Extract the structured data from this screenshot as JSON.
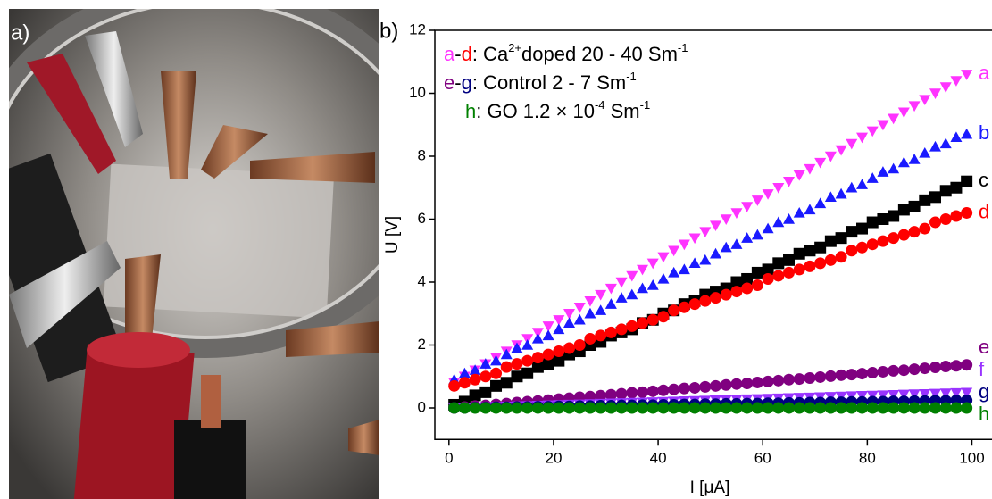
{
  "panel_a": {
    "label": "a)"
  },
  "chart_data": {
    "type": "scatter",
    "panel_label": "b)",
    "x_label": "I [μA]",
    "y_label": "U [V]",
    "xlim": [
      -2.7,
      103.5
    ],
    "ylim": [
      -1,
      12
    ],
    "xticks": [
      0,
      20,
      40,
      60,
      80,
      100
    ],
    "yticks": [
      0,
      2,
      4,
      6,
      8,
      10,
      12
    ],
    "grid": false,
    "legend": [
      [
        {
          "text": "a",
          "color": "#ff33ff"
        },
        {
          "text": "-"
        },
        {
          "text": "d",
          "color": "#ff0000"
        },
        {
          "text": ": Ca"
        },
        {
          "text": "2+",
          "sup": true
        },
        {
          "text": "doped 20 - 40 Sm"
        },
        {
          "text": "-1",
          "sup": true
        }
      ],
      [
        {
          "text": "e",
          "color": "#800080"
        },
        {
          "text": "-"
        },
        {
          "text": "g",
          "color": "#000080"
        },
        {
          "text": ": Control  2 - 7 Sm"
        },
        {
          "text": "-1",
          "sup": true
        }
      ],
      [
        {
          "text": "h",
          "color": "#008000"
        },
        {
          "text": ": GO  1.2 × 10"
        },
        {
          "text": "-4",
          "sup": true
        },
        {
          "text": " Sm"
        },
        {
          "text": "-1",
          "sup": true
        }
      ]
    ],
    "x": [
      1,
      3,
      5,
      7,
      9,
      11,
      13,
      15,
      17,
      19,
      21,
      23,
      25,
      27,
      29,
      31,
      33,
      35,
      37,
      39,
      41,
      43,
      45,
      47,
      49,
      51,
      53,
      55,
      57,
      59,
      61,
      63,
      65,
      67,
      69,
      71,
      73,
      75,
      77,
      79,
      81,
      83,
      85,
      87,
      89,
      91,
      93,
      95,
      97,
      99
    ],
    "series": [
      {
        "name": "a",
        "color": "#ff33ff",
        "marker": "triangle-down",
        "values": [
          0.8,
          1.0,
          1.2,
          1.4,
          1.6,
          1.8,
          2.0,
          2.2,
          2.4,
          2.6,
          2.8,
          3.0,
          3.2,
          3.4,
          3.6,
          3.8,
          4.0,
          4.2,
          4.4,
          4.6,
          4.8,
          5.0,
          5.2,
          5.4,
          5.6,
          5.8,
          6.0,
          6.2,
          6.4,
          6.6,
          6.8,
          7.0,
          7.2,
          7.4,
          7.6,
          7.8,
          8.0,
          8.2,
          8.4,
          8.6,
          8.8,
          9.0,
          9.2,
          9.4,
          9.6,
          9.8,
          10.0,
          10.2,
          10.4,
          10.6
        ]
      },
      {
        "name": "b",
        "color": "#1a1aff",
        "marker": "triangle-up",
        "values": [
          0.9,
          1.1,
          1.2,
          1.4,
          1.5,
          1.7,
          1.9,
          2.0,
          2.2,
          2.3,
          2.5,
          2.7,
          2.8,
          3.0,
          3.1,
          3.3,
          3.5,
          3.6,
          3.8,
          3.9,
          4.1,
          4.3,
          4.4,
          4.6,
          4.7,
          4.9,
          5.1,
          5.2,
          5.4,
          5.5,
          5.7,
          5.9,
          6.0,
          6.2,
          6.3,
          6.5,
          6.7,
          6.8,
          7.0,
          7.1,
          7.3,
          7.5,
          7.6,
          7.8,
          7.9,
          8.1,
          8.3,
          8.4,
          8.6,
          8.7
        ]
      },
      {
        "name": "c",
        "color": "#000000",
        "marker": "square",
        "values": [
          0.1,
          0.2,
          0.4,
          0.5,
          0.7,
          0.8,
          1.0,
          1.1,
          1.3,
          1.4,
          1.5,
          1.7,
          1.8,
          2.0,
          2.1,
          2.3,
          2.4,
          2.5,
          2.7,
          2.8,
          3.0,
          3.1,
          3.3,
          3.4,
          3.6,
          3.7,
          3.8,
          4.0,
          4.1,
          4.3,
          4.4,
          4.6,
          4.7,
          4.9,
          5.0,
          5.1,
          5.3,
          5.4,
          5.6,
          5.7,
          5.9,
          6.0,
          6.1,
          6.3,
          6.4,
          6.6,
          6.7,
          6.9,
          7.0,
          7.2
        ]
      },
      {
        "name": "d",
        "color": "#ff0000",
        "marker": "circle",
        "values": [
          0.7,
          0.8,
          0.9,
          1.0,
          1.1,
          1.3,
          1.4,
          1.5,
          1.6,
          1.7,
          1.8,
          1.9,
          2.0,
          2.2,
          2.3,
          2.4,
          2.5,
          2.6,
          2.7,
          2.8,
          2.9,
          3.1,
          3.2,
          3.3,
          3.4,
          3.5,
          3.6,
          3.7,
          3.8,
          3.9,
          4.1,
          4.2,
          4.3,
          4.4,
          4.5,
          4.6,
          4.7,
          4.8,
          5.0,
          5.1,
          5.2,
          5.3,
          5.4,
          5.5,
          5.6,
          5.7,
          5.9,
          6.0,
          6.1,
          6.2
        ]
      },
      {
        "name": "e",
        "color": "#800080",
        "marker": "circle",
        "values": [
          0,
          0.03,
          0.06,
          0.08,
          0.11,
          0.14,
          0.17,
          0.2,
          0.22,
          0.25,
          0.28,
          0.31,
          0.34,
          0.36,
          0.39,
          0.42,
          0.45,
          0.48,
          0.5,
          0.53,
          0.56,
          0.59,
          0.62,
          0.64,
          0.67,
          0.7,
          0.73,
          0.76,
          0.78,
          0.81,
          0.84,
          0.87,
          0.9,
          0.92,
          0.95,
          0.98,
          1.01,
          1.04,
          1.06,
          1.09,
          1.12,
          1.15,
          1.18,
          1.2,
          1.23,
          1.26,
          1.29,
          1.32,
          1.34,
          1.37
        ]
      },
      {
        "name": "f",
        "color": "#9933ff",
        "marker": "triangle-down",
        "values": [
          0,
          0.01,
          0.02,
          0.03,
          0.04,
          0.05,
          0.06,
          0.07,
          0.08,
          0.09,
          0.1,
          0.11,
          0.12,
          0.13,
          0.14,
          0.15,
          0.16,
          0.17,
          0.18,
          0.19,
          0.2,
          0.21,
          0.22,
          0.23,
          0.24,
          0.25,
          0.26,
          0.27,
          0.28,
          0.29,
          0.3,
          0.31,
          0.32,
          0.33,
          0.34,
          0.35,
          0.36,
          0.37,
          0.38,
          0.39,
          0.4,
          0.41,
          0.42,
          0.43,
          0.44,
          0.45,
          0.46,
          0.47,
          0.48,
          0.49
        ]
      },
      {
        "name": "g",
        "color": "#000080",
        "marker": "circle",
        "values": [
          0,
          0,
          0.01,
          0.01,
          0.02,
          0.02,
          0.03,
          0.03,
          0.04,
          0.04,
          0.05,
          0.05,
          0.06,
          0.06,
          0.07,
          0.07,
          0.08,
          0.08,
          0.09,
          0.09,
          0.1,
          0.1,
          0.11,
          0.11,
          0.12,
          0.12,
          0.13,
          0.13,
          0.14,
          0.14,
          0.15,
          0.15,
          0.16,
          0.16,
          0.17,
          0.17,
          0.18,
          0.18,
          0.19,
          0.19,
          0.2,
          0.2,
          0.21,
          0.21,
          0.22,
          0.22,
          0.23,
          0.23,
          0.24,
          0.24
        ]
      },
      {
        "name": "h",
        "color": "#008000",
        "marker": "circle",
        "values": [
          0,
          0,
          0,
          0,
          0,
          0,
          0,
          0,
          0,
          0,
          0,
          0,
          0,
          0,
          0,
          0,
          0,
          0,
          0,
          0,
          0,
          0,
          0,
          0,
          0,
          0,
          0,
          0,
          0,
          0,
          0,
          0,
          0,
          0,
          0,
          0,
          0,
          0,
          0,
          0,
          0,
          0,
          0,
          0,
          0,
          0,
          0,
          0,
          0,
          0
        ]
      }
    ]
  }
}
